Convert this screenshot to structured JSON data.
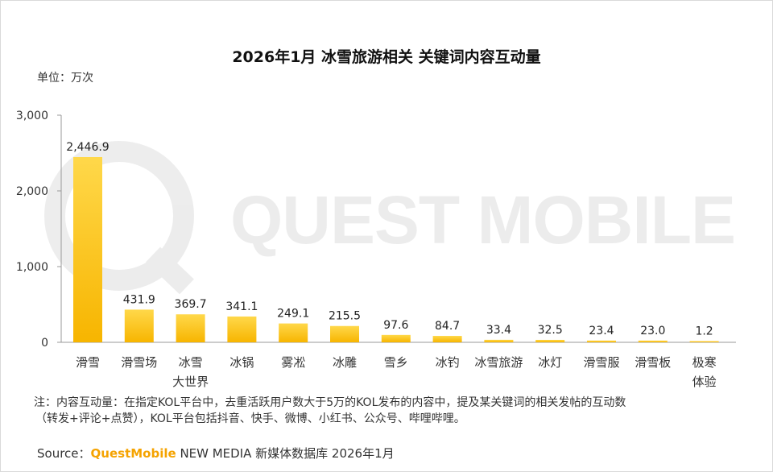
{
  "chart_data": {
    "type": "bar",
    "title": "2026年1月 冰雪旅游相关 关键词内容互动量",
    "unit_label": "单位：万次",
    "categories": [
      [
        "滑雪"
      ],
      [
        "滑雪场"
      ],
      [
        "冰雪",
        "大世界"
      ],
      [
        "冰锅"
      ],
      [
        "雾凇"
      ],
      [
        "冰雕"
      ],
      [
        "雪乡"
      ],
      [
        "冰钓"
      ],
      [
        "冰雪旅游"
      ],
      [
        "冰灯"
      ],
      [
        "滑雪服"
      ],
      [
        "滑雪板"
      ],
      [
        "极寒",
        "体验"
      ]
    ],
    "values": [
      2446.9,
      431.9,
      369.7,
      341.1,
      249.1,
      215.5,
      97.6,
      84.7,
      33.4,
      32.5,
      23.4,
      23.0,
      1.2
    ],
    "value_labels": [
      "2,446.9",
      "431.9",
      "369.7",
      "341.1",
      "249.1",
      "215.5",
      "97.6",
      "84.7",
      "33.4",
      "32.5",
      "23.4",
      "23.0",
      "1.2"
    ],
    "ylim": [
      0,
      3000
    ],
    "yticks": [
      0,
      1000,
      2000,
      3000
    ],
    "ytick_labels": [
      "0",
      "1,000",
      "2,000",
      "3,000"
    ],
    "grid": false,
    "bar_color_top": "#ffd84a",
    "bar_color_bottom": "#f7b500"
  },
  "watermark": "QUEST MOBILE",
  "footnote": {
    "line1": "注：内容互动量：在指定KOL平台中，去重活跃用户数大于5万的KOL发布的内容中，提及某关键词的相关发帖的互动数",
    "line2": "（转发+评论+点赞），KOL平台包括抖音、快手、微博、小红书、公众号、哔哩哔哩。"
  },
  "source": {
    "prefix": "Source：",
    "brand": "QuestMobile",
    "suffix": " NEW MEDIA 新媒体数据库 2026年1月"
  }
}
